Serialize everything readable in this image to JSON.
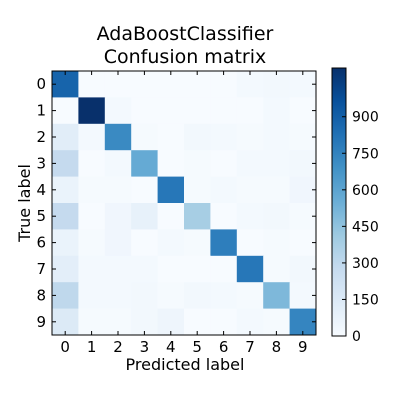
{
  "chart_data": {
    "type": "heatmap",
    "title": "AdaBoostClassifier\nConfusion matrix",
    "xlabel": "Predicted label",
    "ylabel": "True label",
    "x_categories": [
      "0",
      "1",
      "2",
      "3",
      "4",
      "5",
      "6",
      "7",
      "8",
      "9"
    ],
    "y_categories": [
      "0",
      "1",
      "2",
      "3",
      "4",
      "5",
      "6",
      "7",
      "8",
      "9"
    ],
    "matrix": [
      [
        880,
        0,
        0,
        0,
        0,
        0,
        0,
        20,
        30,
        20
      ],
      [
        0,
        1100,
        20,
        0,
        0,
        0,
        0,
        0,
        20,
        0
      ],
      [
        120,
        20,
        720,
        10,
        0,
        30,
        20,
        10,
        20,
        10
      ],
      [
        280,
        0,
        20,
        570,
        0,
        10,
        0,
        20,
        20,
        30
      ],
      [
        70,
        10,
        10,
        0,
        800,
        10,
        20,
        10,
        10,
        40
      ],
      [
        280,
        0,
        40,
        90,
        0,
        380,
        0,
        20,
        30,
        10
      ],
      [
        70,
        10,
        40,
        0,
        20,
        10,
        770,
        0,
        10,
        0
      ],
      [
        110,
        20,
        20,
        20,
        0,
        0,
        0,
        800,
        10,
        30
      ],
      [
        300,
        20,
        20,
        30,
        10,
        30,
        20,
        10,
        500,
        20
      ],
      [
        150,
        10,
        10,
        30,
        50,
        0,
        0,
        20,
        10,
        740
      ]
    ],
    "colormap": "Blues",
    "colorbar": {
      "vmin": 0,
      "vmax": 1100,
      "ticks": [
        0,
        150,
        300,
        450,
        600,
        750,
        900
      ]
    },
    "grid": false
  }
}
